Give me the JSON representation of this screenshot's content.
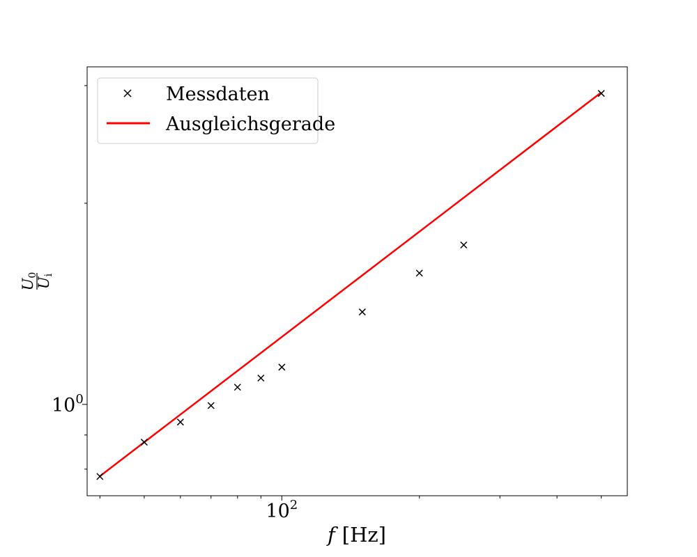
{
  "chart_data": {
    "type": "scatter",
    "xscale": "log",
    "yscale": "log",
    "xlim": [
      37.5,
      570
    ],
    "ylim": [
      0.73,
      3.2
    ],
    "grid": false,
    "legend_placement": "top-left",
    "xlabel_var": "f",
    "xlabel_unit": "[Hz]",
    "ylabel_num": "U",
    "ylabel_num_sub": "0",
    "ylabel_den": "U",
    "ylabel_den_sub": "i",
    "xticks": [
      {
        "value": 100,
        "base": "10",
        "exp": "2"
      }
    ],
    "yticks": [
      {
        "value": 1,
        "base": "10",
        "exp": "0"
      }
    ],
    "series": [
      {
        "name": "Messdaten",
        "kind": "marker",
        "marker": "x",
        "color": "#000000",
        "x": [
          40,
          50,
          60,
          70,
          80,
          90,
          100,
          150,
          200,
          250,
          500
        ],
        "y": [
          0.78,
          0.878,
          0.941,
          0.996,
          1.061,
          1.095,
          1.137,
          1.375,
          1.572,
          1.732,
          2.92
        ]
      },
      {
        "name": "Ausgleichsgerade",
        "kind": "line",
        "color": "#ff0000",
        "x": [
          40,
          500
        ],
        "y": [
          0.781,
          2.93
        ]
      }
    ]
  }
}
